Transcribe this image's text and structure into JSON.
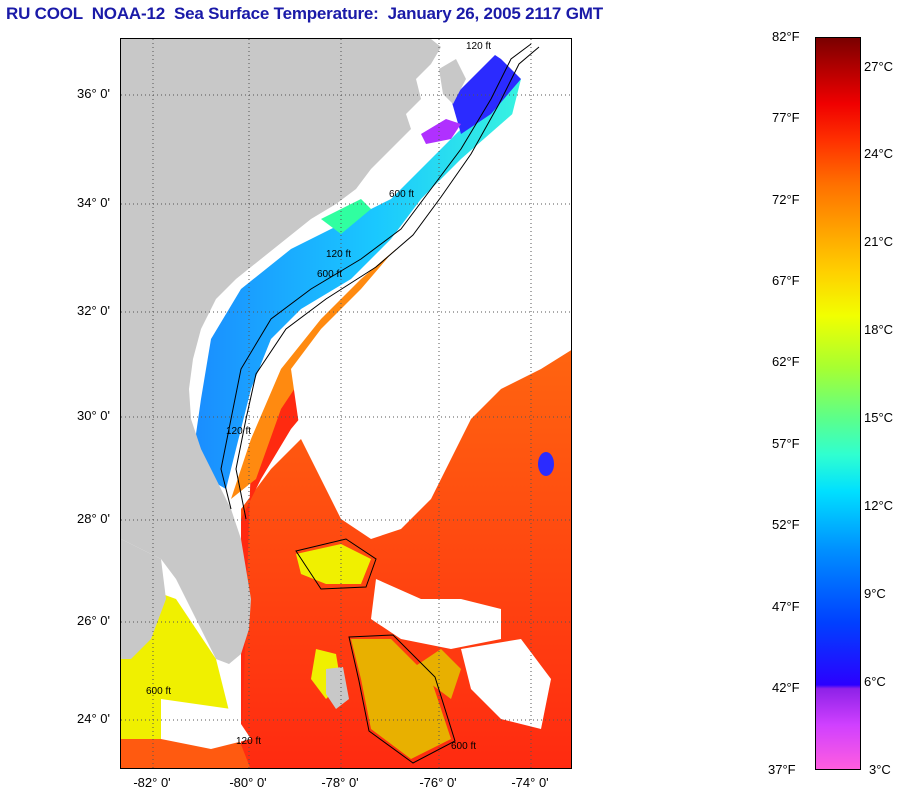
{
  "title": "RU COOL  NOAA-12  Sea Surface Temperature:  January 26, 2005 2117 GMT",
  "map": {
    "lat_labels": [
      "36° 0'",
      "34° 0'",
      "32° 0'",
      "30° 0'",
      "28° 0'",
      "26° 0'",
      "24° 0'"
    ],
    "lon_labels": [
      "-82° 0'",
      "-80° 0'",
      "-78° 0'",
      "-76° 0'",
      "-74° 0'"
    ],
    "contour_labels": [
      "120 ft",
      "600 ft",
      "120 ft",
      "600 ft",
      "120 ft",
      "600 ft",
      "120 ft",
      "600 ft"
    ]
  },
  "colorbar": {
    "fahrenheit": [
      "82°F",
      "77°F",
      "72°F",
      "67°F",
      "62°F",
      "57°F",
      "52°F",
      "47°F",
      "42°F",
      "37°F"
    ],
    "celsius": [
      "27°C",
      "24°C",
      "21°C",
      "18°C",
      "15°C",
      "12°C",
      "9°C",
      "6°C",
      "3°C"
    ]
  },
  "colors": {
    "title": "#1a1aa8",
    "land": "#c8c8c8",
    "cloud": "#ffffff",
    "gulf_stream": "#ff2a10",
    "shelf_water": "#1ab0ff",
    "cold_water": "#2b2bff"
  }
}
